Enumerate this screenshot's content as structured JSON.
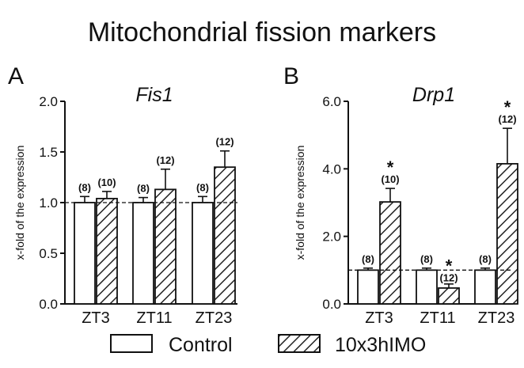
{
  "figure": {
    "title": "Mitochondrial fission markers"
  },
  "legend": {
    "items": [
      {
        "label": "Control",
        "pattern": "open"
      },
      {
        "label": "10x3hIMO",
        "pattern": "hatched"
      }
    ]
  },
  "chart_data": [
    {
      "type": "bar",
      "panel_letter": "A",
      "title": "Fis1",
      "ylabel": "x-fold of the expression",
      "xlabel": "",
      "ylim": [
        0,
        2.0
      ],
      "yticks": [
        "0.0",
        "0.5",
        "1.0",
        "1.5",
        "2.0"
      ],
      "categories": [
        "ZT3",
        "ZT11",
        "ZT23"
      ],
      "reference_line": 1.0,
      "series": [
        {
          "name": "Control",
          "values": [
            1.0,
            1.0,
            1.0
          ],
          "errors": [
            0.06,
            0.05,
            0.06
          ],
          "n_labels": [
            "(8)",
            "(8)",
            "(8)"
          ],
          "sig": [
            "",
            "",
            ""
          ]
        },
        {
          "name": "10x3hIMO",
          "values": [
            1.04,
            1.13,
            1.35
          ],
          "errors": [
            0.07,
            0.2,
            0.16
          ],
          "n_labels": [
            "(10)",
            "(12)",
            "(12)"
          ],
          "sig": [
            "",
            "",
            ""
          ]
        }
      ]
    },
    {
      "type": "bar",
      "panel_letter": "B",
      "title": "Drp1",
      "ylabel": "x-fold of the expression",
      "xlabel": "",
      "ylim": [
        0,
        6.0
      ],
      "yticks": [
        "0.0",
        "2.0",
        "4.0",
        "6.0"
      ],
      "categories": [
        "ZT3",
        "ZT11",
        "ZT23"
      ],
      "reference_line": 1.0,
      "series": [
        {
          "name": "Control",
          "values": [
            1.0,
            1.0,
            1.0
          ],
          "errors": [
            0.06,
            0.06,
            0.06
          ],
          "n_labels": [
            "(8)",
            "(8)",
            "(8)"
          ],
          "sig": [
            "",
            "",
            ""
          ]
        },
        {
          "name": "10x3hIMO",
          "values": [
            3.02,
            0.47,
            4.15
          ],
          "errors": [
            0.4,
            0.12,
            1.05
          ],
          "n_labels": [
            "(10)",
            "(12)",
            "(12)"
          ],
          "sig": [
            "*",
            "*",
            "*"
          ]
        }
      ]
    }
  ]
}
